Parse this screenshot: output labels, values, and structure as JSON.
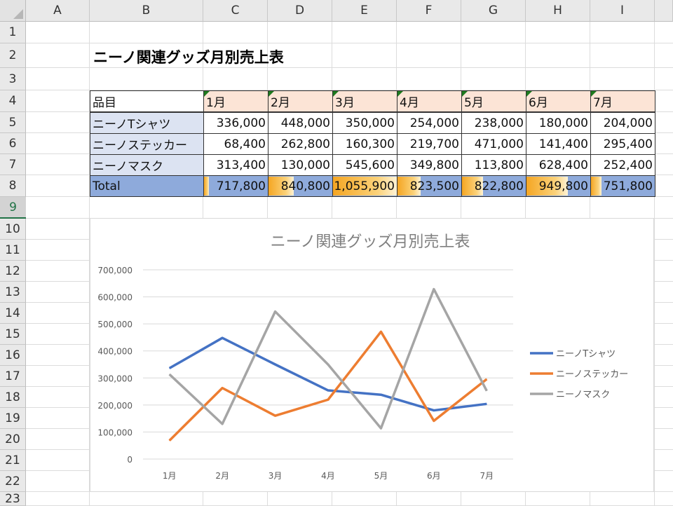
{
  "sheet": {
    "columns": [
      "A",
      "B",
      "C",
      "D",
      "E",
      "F",
      "G",
      "H",
      "I"
    ],
    "rows": [
      "1",
      "2",
      "3",
      "4",
      "5",
      "6",
      "7",
      "8",
      "9",
      "10",
      "11",
      "12",
      "13",
      "14",
      "15",
      "16",
      "17",
      "18",
      "19",
      "20",
      "21",
      "22",
      "23"
    ],
    "title": "ニーノ関連グッズ月別売上表"
  },
  "table": {
    "header_item": "品目",
    "months": [
      "1月",
      "2月",
      "3月",
      "4月",
      "5月",
      "6月",
      "7月"
    ],
    "rows": [
      {
        "label": "ニーノTシャツ",
        "values": [
          "336,000",
          "448,000",
          "350,000",
          "254,000",
          "238,000",
          "180,000",
          "204,000"
        ]
      },
      {
        "label": "ニーノステッカー",
        "values": [
          "68,400",
          "262,800",
          "160,300",
          "219,700",
          "471,000",
          "141,400",
          "295,400"
        ]
      },
      {
        "label": "ニーノマスク",
        "values": [
          "313,400",
          "130,000",
          "545,600",
          "349,800",
          "113,800",
          "628,400",
          "252,400"
        ]
      }
    ],
    "total": {
      "label": "Total",
      "values": [
        "717,800",
        "840,800",
        "1,055,900",
        "823,500",
        "822,800",
        "949,800",
        "751,800"
      ],
      "bar_fractions": [
        0.08,
        0.4,
        1.0,
        0.36,
        0.33,
        0.65,
        0.16
      ]
    }
  },
  "chart_data": {
    "type": "line",
    "title": "ニーノ関連グッズ月別売上表",
    "categories": [
      "1月",
      "2月",
      "3月",
      "4月",
      "5月",
      "6月",
      "7月"
    ],
    "ylim": [
      0,
      700000
    ],
    "yticks": [
      0,
      100000,
      200000,
      300000,
      400000,
      500000,
      600000,
      700000
    ],
    "ytick_labels": [
      "0",
      "100,000",
      "200,000",
      "300,000",
      "400,000",
      "500,000",
      "600,000",
      "700,000"
    ],
    "grid": true,
    "legend_position": "right",
    "series": [
      {
        "name": "ニーノTシャツ",
        "color": "#4472c4",
        "values": [
          336000,
          448000,
          350000,
          254000,
          238000,
          180000,
          204000
        ]
      },
      {
        "name": "ニーノステッカー",
        "color": "#ed7d31",
        "values": [
          68400,
          262800,
          160300,
          219700,
          471000,
          141400,
          295400
        ]
      },
      {
        "name": "ニーノマスク",
        "color": "#a5a5a5",
        "values": [
          313400,
          130000,
          545600,
          349800,
          113800,
          628400,
          252400
        ]
      }
    ]
  }
}
